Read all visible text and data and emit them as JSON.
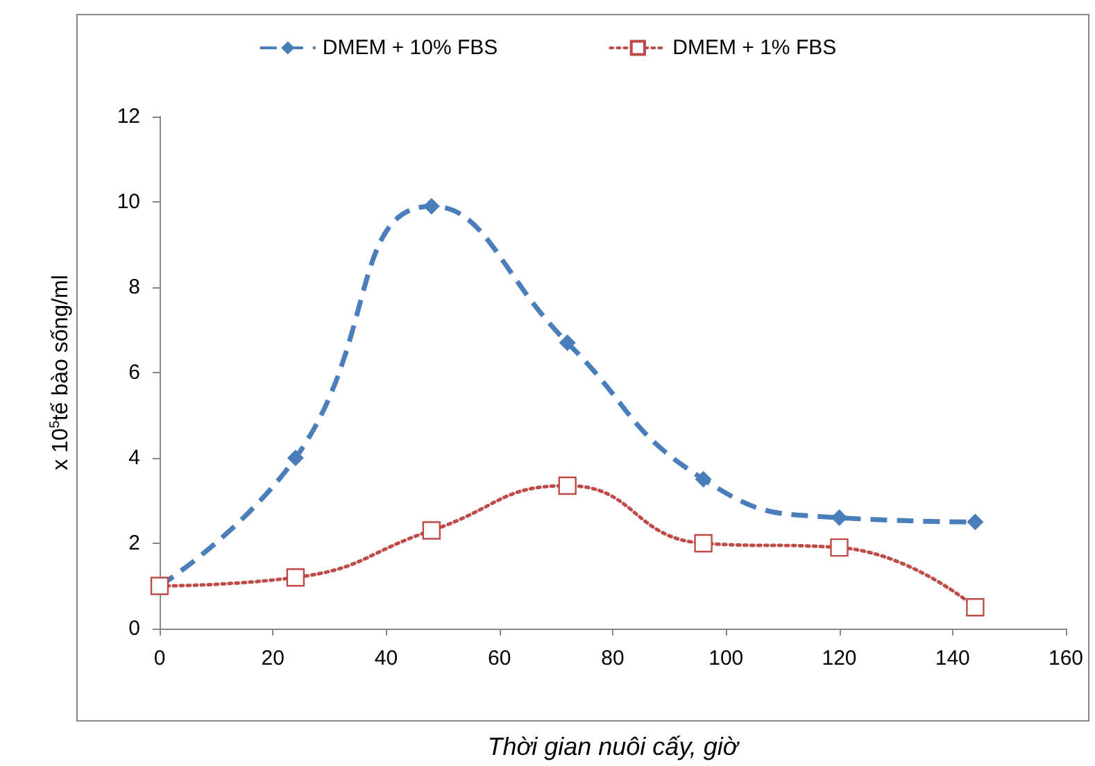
{
  "chart_data": {
    "type": "line",
    "xlabel": "Thời gian nuôi cấy, giờ",
    "ylabel": "x 10$^{5}$tế bào sống/ml",
    "x": [
      0,
      24,
      48,
      72,
      96,
      120,
      144
    ],
    "series": [
      {
        "name": "DMEM + 10% FBS",
        "color": "#4a7ebb",
        "marker": "diamond",
        "line_style": "dashed",
        "values": [
          1,
          4,
          9.9,
          6.7,
          3.5,
          2.6,
          2.5
        ]
      },
      {
        "name": "DMEM + 1% FBS",
        "color": "#be4b48",
        "marker": "square",
        "line_style": "dotted",
        "values": [
          1,
          1.2,
          2.3,
          3.35,
          2,
          1.9,
          0.5
        ]
      }
    ],
    "xlim": [
      0,
      160
    ],
    "xticks": [
      0,
      20,
      40,
      60,
      80,
      100,
      120,
      140,
      160
    ],
    "ylim": [
      0,
      12
    ],
    "yticks": [
      0,
      2,
      4,
      6,
      8,
      10,
      12
    ],
    "grid": false,
    "legend": "top"
  }
}
